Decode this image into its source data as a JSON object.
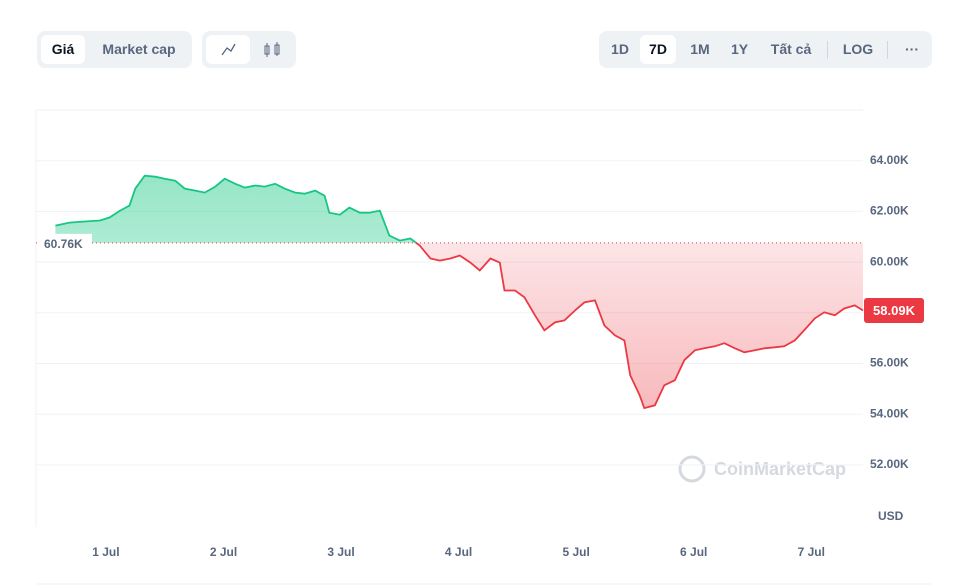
{
  "ui": {
    "tabs": [
      "Giá",
      "Market cap"
    ],
    "ranges": [
      "1D",
      "7D",
      "1M",
      "1Y",
      "Tất cả"
    ],
    "log": "LOG",
    "more": "···",
    "watermark": "CoinMarketCap",
    "currency": "USD"
  },
  "chart_data": {
    "type": "line",
    "x": [
      0.57,
      0.69,
      0.82,
      0.95,
      1.03,
      1.12,
      1.2,
      1.25,
      1.33,
      1.42,
      1.5,
      1.59,
      1.67,
      1.76,
      1.84,
      1.93,
      2.01,
      2.1,
      2.18,
      2.27,
      2.35,
      2.44,
      2.52,
      2.61,
      2.69,
      2.78,
      2.86,
      2.9,
      2.99,
      3.07,
      3.16,
      3.24,
      3.33,
      3.41,
      3.5,
      3.59,
      3.67,
      3.76,
      3.84,
      3.93,
      4.01,
      4.1,
      4.18,
      4.27,
      4.35,
      4.39,
      4.48,
      4.56,
      4.65,
      4.73,
      4.82,
      4.9,
      4.99,
      5.07,
      5.16,
      5.24,
      5.33,
      5.41,
      5.46,
      5.54,
      5.58,
      5.67,
      5.75,
      5.84,
      5.92,
      6.01,
      6.09,
      6.18,
      6.26,
      6.35,
      6.43,
      6.52,
      6.6,
      6.69,
      6.77,
      6.86,
      6.94,
      7.03,
      7.11,
      7.2,
      7.28,
      7.37,
      7.44
    ],
    "values": [
      61440,
      61560,
      61600,
      61640,
      61760,
      62030,
      62230,
      62900,
      63410,
      63370,
      63290,
      63210,
      62900,
      62820,
      62740,
      62980,
      63290,
      63090,
      62940,
      63020,
      62980,
      63090,
      62900,
      62740,
      62700,
      62820,
      62620,
      61950,
      61870,
      62150,
      61950,
      61950,
      62030,
      61050,
      60850,
      60930,
      60650,
      60140,
      60060,
      60140,
      60260,
      59980,
      59670,
      60140,
      59980,
      58880,
      58880,
      58610,
      57900,
      57310,
      57620,
      57700,
      58090,
      58410,
      58490,
      57500,
      57110,
      56910,
      55540,
      54750,
      54240,
      54350,
      55140,
      55340,
      56130,
      56520,
      56600,
      56680,
      56800,
      56600,
      56440,
      56520,
      56600,
      56640,
      56680,
      56910,
      57310,
      57780,
      58020,
      57900,
      58170,
      58290,
      58090
    ],
    "color_up": "#16c784",
    "color_down": "#ea3943",
    "baseline": {
      "value": 60760,
      "label": "60.76K"
    },
    "current_price": {
      "value": 58090,
      "label": "58.09K"
    },
    "xlim": [
      0.405,
      7.44
    ],
    "xticks": [
      {
        "value": 1,
        "label": "1 Jul"
      },
      {
        "value": 2,
        "label": "2 Jul"
      },
      {
        "value": 3,
        "label": "3 Jul"
      },
      {
        "value": 4,
        "label": "4 Jul"
      },
      {
        "value": 5,
        "label": "5 Jul"
      },
      {
        "value": 6,
        "label": "6 Jul"
      },
      {
        "value": 7,
        "label": "7 Jul"
      }
    ],
    "ylim": [
      49550,
      66000
    ],
    "yticks": [
      {
        "value": 52000,
        "label": "52.00K"
      },
      {
        "value": 54000,
        "label": "54.00K"
      },
      {
        "value": 56000,
        "label": "56.00K"
      },
      {
        "value": 58000,
        "label": "58.00K"
      },
      {
        "value": 60000,
        "label": "60.00K"
      },
      {
        "value": 62000,
        "label": "62.00K"
      },
      {
        "value": 64000,
        "label": "64.00K"
      }
    ],
    "grid": true
  }
}
